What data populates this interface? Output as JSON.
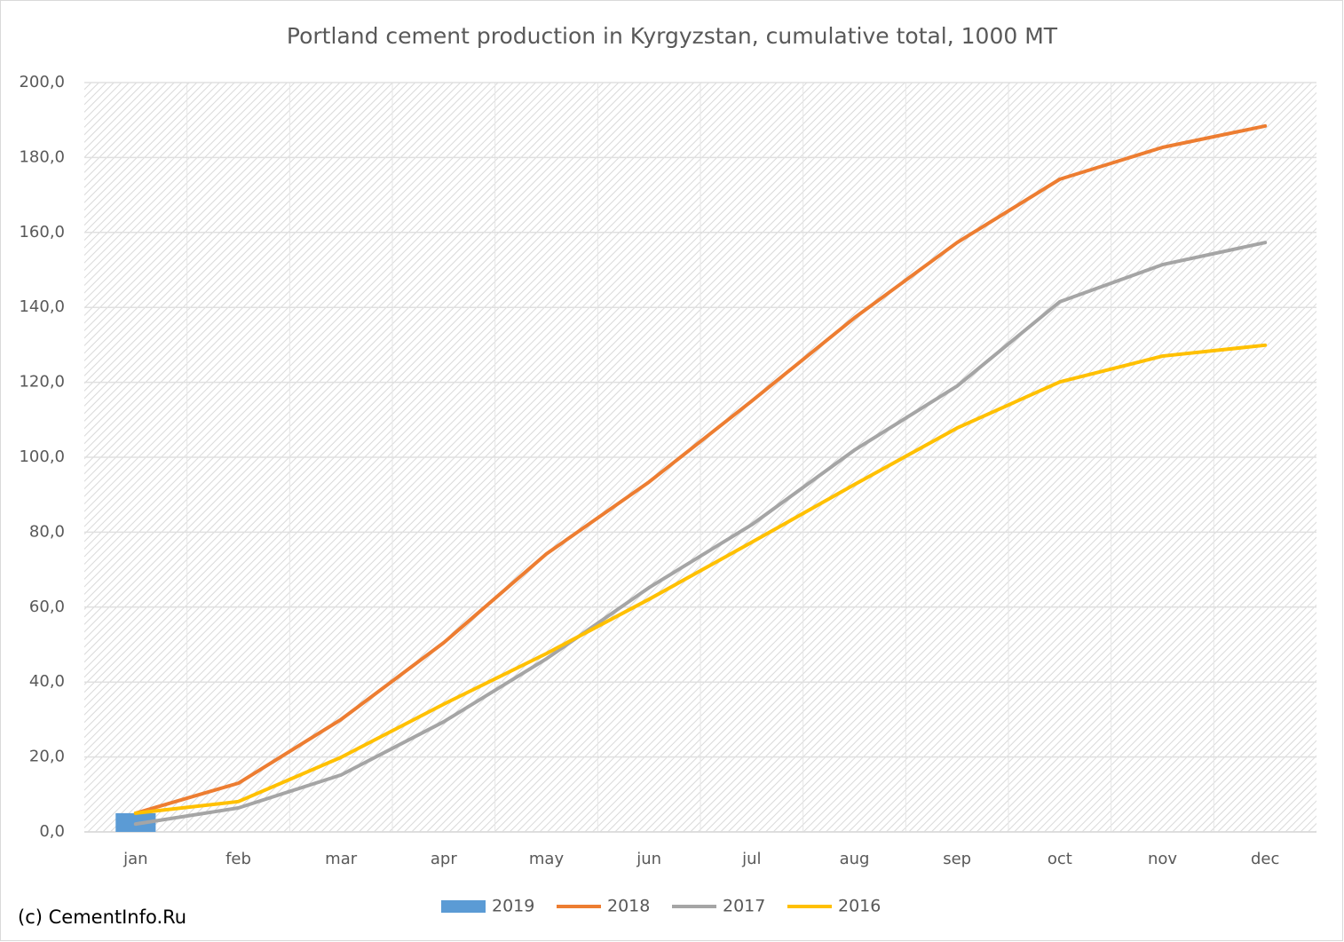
{
  "chart_data": {
    "type": "line",
    "title": "Portland cement production in Kyrgyzstan, cumulative total, 1000 MT",
    "source": "(c) CementInfo.Ru",
    "categories": [
      "jan",
      "feb",
      "mar",
      "apr",
      "may",
      "jun",
      "jul",
      "aug",
      "sep",
      "oct",
      "nov",
      "dec"
    ],
    "series": [
      {
        "name": "2019",
        "type": "bar",
        "color": "#5b9bd5",
        "values": [
          5.0,
          null,
          null,
          null,
          null,
          null,
          null,
          null,
          null,
          null,
          null,
          null
        ]
      },
      {
        "name": "2018",
        "type": "line",
        "color": "#ed7d31",
        "values": [
          5.0,
          13.0,
          30.0,
          50.5,
          74.2,
          93.4,
          115.0,
          137.2,
          157.3,
          174.2,
          182.7,
          188.4
        ]
      },
      {
        "name": "2017",
        "type": "line",
        "color": "#a5a5a5",
        "values": [
          2.1,
          6.4,
          15.2,
          29.4,
          46.2,
          65.2,
          82.0,
          101.9,
          119.0,
          141.5,
          151.4,
          157.3
        ]
      },
      {
        "name": "2016",
        "type": "line",
        "color": "#ffc000",
        "values": [
          5.0,
          8.1,
          19.9,
          34.1,
          47.6,
          62.1,
          77.3,
          92.7,
          107.8,
          120.1,
          127.0,
          129.9
        ]
      }
    ],
    "ylim": [
      0,
      200
    ],
    "yticks": [
      {
        "value": 0,
        "label": "0,0"
      },
      {
        "value": 20,
        "label": "20,0"
      },
      {
        "value": 40,
        "label": "40,0"
      },
      {
        "value": 60,
        "label": "60,0"
      },
      {
        "value": 80,
        "label": "80,0"
      },
      {
        "value": 100,
        "label": "100,0"
      },
      {
        "value": 120,
        "label": "120,0"
      },
      {
        "value": 140,
        "label": "140,0"
      },
      {
        "value": 160,
        "label": "160,0"
      },
      {
        "value": 180,
        "label": "180,0"
      },
      {
        "value": 200,
        "label": "200,0"
      }
    ],
    "grid": true,
    "legend": "bottom"
  }
}
